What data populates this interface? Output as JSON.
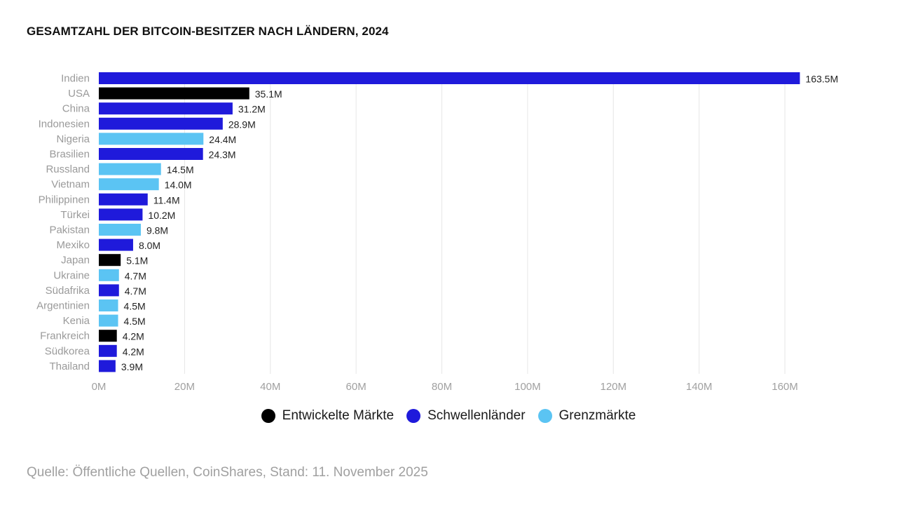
{
  "chart_data": {
    "type": "bar",
    "orientation": "horizontal",
    "title": "GESAMTZAHL DER BITCOIN-BESITZER NACH LÄNDERN, 2024",
    "categories": [
      "Indien",
      "USA",
      "China",
      "Indonesien",
      "Nigeria",
      "Brasilien",
      "Russland",
      "Vietnam",
      "Philippinen",
      "Türkei",
      "Pakistan",
      "Mexiko",
      "Japan",
      "Ukraine",
      "Südafrika",
      "Argentinien",
      "Kenia",
      "Frankreich",
      "Südkorea",
      "Thailand"
    ],
    "values": [
      163.5,
      35.1,
      31.2,
      28.9,
      24.4,
      24.3,
      14.5,
      14.0,
      11.4,
      10.2,
      9.8,
      8.0,
      5.1,
      4.7,
      4.7,
      4.5,
      4.5,
      4.2,
      4.2,
      3.9
    ],
    "value_labels": [
      "163.5M",
      "35.1M",
      "31.2M",
      "28.9M",
      "24.4M",
      "24.3M",
      "14.5M",
      "14.0M",
      "11.4M",
      "10.2M",
      "9.8M",
      "8.0M",
      "5.1M",
      "4.7M",
      "4.7M",
      "4.5M",
      "4.5M",
      "4.2M",
      "4.2M",
      "3.9M"
    ],
    "groups": [
      "Schwellenländer",
      "Entwickelte Märkte",
      "Schwellenländer",
      "Schwellenländer",
      "Grenzmärkte",
      "Schwellenländer",
      "Grenzmärkte",
      "Grenzmärkte",
      "Schwellenländer",
      "Schwellenländer",
      "Grenzmärkte",
      "Schwellenländer",
      "Entwickelte Märkte",
      "Grenzmärkte",
      "Schwellenländer",
      "Grenzmärkte",
      "Grenzmärkte",
      "Entwickelte Märkte",
      "Schwellenländer",
      "Schwellenländer"
    ],
    "xlim": [
      0,
      160
    ],
    "xticks": [
      0,
      20,
      40,
      60,
      80,
      100,
      120,
      140,
      160
    ],
    "xtick_labels": [
      "0M",
      "20M",
      "40M",
      "60M",
      "80M",
      "100M",
      "120M",
      "140M",
      "160M"
    ],
    "grid": true,
    "legend_position": "bottom-center",
    "legend": [
      {
        "name": "Entwickelte Märkte",
        "color": "#000000"
      },
      {
        "name": "Schwellenländer",
        "color": "#1f1adb"
      },
      {
        "name": "Grenzmärkte",
        "color": "#5bc4f3"
      }
    ]
  },
  "source": "Quelle: Öffentliche Quellen, CoinShares, Stand: 11. November 2025"
}
